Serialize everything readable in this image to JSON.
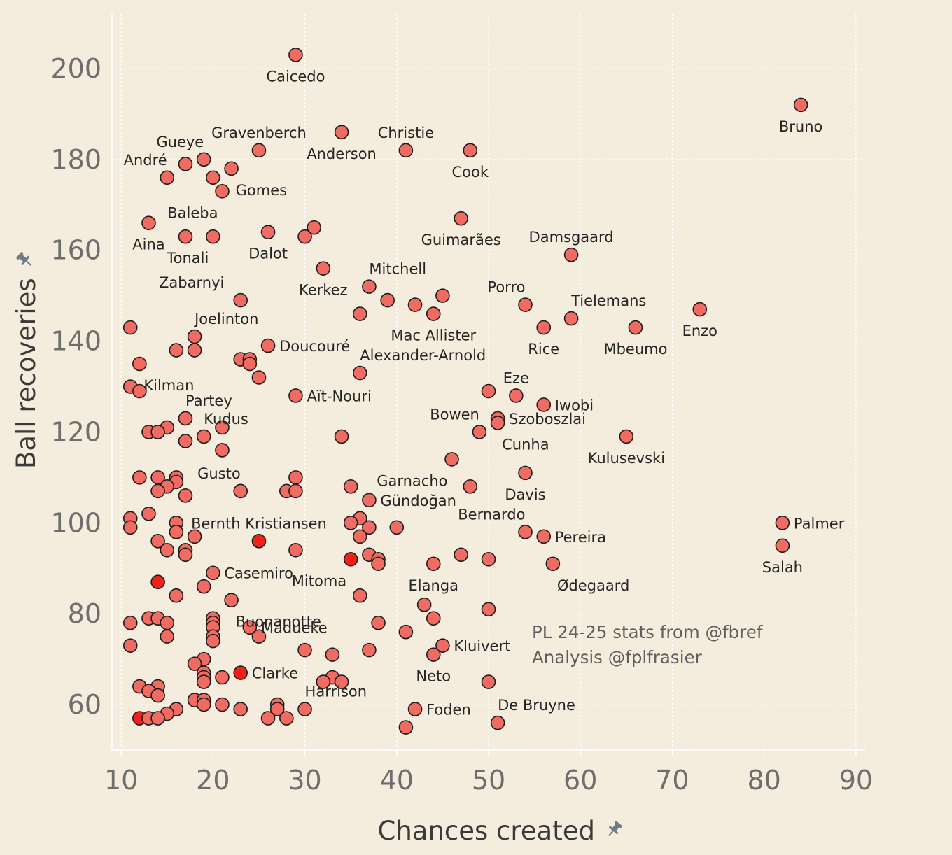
{
  "chart_data": {
    "type": "scatter",
    "xlabel": "Chances created",
    "ylabel": "Ball recoveries",
    "xlim": [
      9,
      91
    ],
    "ylim": [
      50,
      212
    ],
    "xticks": [
      10,
      20,
      30,
      40,
      50,
      60,
      70,
      80,
      90
    ],
    "yticks": [
      60,
      80,
      100,
      120,
      140,
      160,
      180,
      200
    ],
    "grid": true,
    "annotation": [
      "PL 24-25 stats from @fbref",
      "Analysis @fplfrasier"
    ],
    "point_color": "#f06b62",
    "overlap_color": "#f51f1a",
    "points": [
      {
        "x": 29,
        "y": 203,
        "label": "Caicedo",
        "pos": "below"
      },
      {
        "x": 84,
        "y": 192,
        "label": "Bruno",
        "pos": "below"
      },
      {
        "x": 34,
        "y": 186,
        "label": "Anderson",
        "pos": "below"
      },
      {
        "x": 25,
        "y": 182,
        "label": "Gravenberch",
        "pos": "above"
      },
      {
        "x": 41,
        "y": 182,
        "label": "Christie",
        "pos": "above"
      },
      {
        "x": 48,
        "y": 182,
        "label": "Cook",
        "pos": "below"
      },
      {
        "x": 19,
        "y": 180,
        "label": "Gueye",
        "pos": "aboveleft"
      },
      {
        "x": 17,
        "y": 179
      },
      {
        "x": 15,
        "y": 176,
        "label": "André",
        "pos": "aboveleft"
      },
      {
        "x": 22,
        "y": 178,
        "label": "Gomes",
        "pos": "belowright"
      },
      {
        "x": 20,
        "y": 176
      },
      {
        "x": 21,
        "y": 173,
        "label": "Baleba",
        "pos": "belowleft"
      },
      {
        "x": 47,
        "y": 167,
        "label": "Guimarães",
        "pos": "below"
      },
      {
        "x": 13,
        "y": 166,
        "label": "Aina",
        "pos": "below"
      },
      {
        "x": 31,
        "y": 165
      },
      {
        "x": 26,
        "y": 164,
        "label": "Dalot",
        "pos": "below"
      },
      {
        "x": 30,
        "y": 163
      },
      {
        "x": 17,
        "y": 163
      },
      {
        "x": 20,
        "y": 163,
        "label": "Tonali",
        "pos": "belowleft"
      },
      {
        "x": 59,
        "y": 159,
        "label": "Damsgaard",
        "pos": "above"
      },
      {
        "x": 32,
        "y": 156,
        "label": "Kerkez",
        "pos": "below"
      },
      {
        "x": 37,
        "y": 152,
        "label": "Mitchell",
        "pos": "aboveright"
      },
      {
        "x": 45,
        "y": 150
      },
      {
        "x": 39,
        "y": 149
      },
      {
        "x": 23,
        "y": 149,
        "label": "Zabarnyi",
        "pos": "aboveleftfar"
      },
      {
        "x": 54,
        "y": 148,
        "label": "Porro",
        "pos": "aboveleft"
      },
      {
        "x": 42,
        "y": 148
      },
      {
        "x": 73,
        "y": 147,
        "label": "Enzo",
        "pos": "below"
      },
      {
        "x": 44,
        "y": 146,
        "label": "Mac Allister",
        "pos": "below"
      },
      {
        "x": 36,
        "y": 146
      },
      {
        "x": 59,
        "y": 145,
        "label": "Tielemans",
        "pos": "aboveright"
      },
      {
        "x": 56,
        "y": 143,
        "label": "Rice",
        "pos": "below"
      },
      {
        "x": 66,
        "y": 143,
        "label": "Mbeumo",
        "pos": "below"
      },
      {
        "x": 11,
        "y": 143
      },
      {
        "x": 18,
        "y": 141,
        "label": "Joelinton",
        "pos": "aboveright"
      },
      {
        "x": 26,
        "y": 139,
        "label": "Doucouré",
        "pos": "right"
      },
      {
        "x": 16,
        "y": 138
      },
      {
        "x": 18,
        "y": 138
      },
      {
        "x": 23,
        "y": 136
      },
      {
        "x": 24,
        "y": 136
      },
      {
        "x": 24,
        "y": 135
      },
      {
        "x": 12,
        "y": 135,
        "label": "Kilman",
        "pos": "belowright"
      },
      {
        "x": 36,
        "y": 133,
        "label": "Alexander-Arnold",
        "pos": "aboveright"
      },
      {
        "x": 25,
        "y": 132
      },
      {
        "x": 11,
        "y": 130
      },
      {
        "x": 50,
        "y": 129
      },
      {
        "x": 12,
        "y": 129
      },
      {
        "x": 53,
        "y": 128,
        "label": "Eze",
        "pos": "above"
      },
      {
        "x": 29,
        "y": 128,
        "label": "Aït-Nouri",
        "pos": "right"
      },
      {
        "x": 56,
        "y": 126,
        "label": "Iwobi",
        "pos": "right"
      },
      {
        "x": 17,
        "y": 123,
        "label": "Partey",
        "pos": "aboveright"
      },
      {
        "x": 51,
        "y": 123,
        "label": "Szoboszlai",
        "pos": "right"
      },
      {
        "x": 51,
        "y": 122,
        "label": "Cunha",
        "pos": "belowright"
      },
      {
        "x": 15,
        "y": 121
      },
      {
        "x": 21,
        "y": 121
      },
      {
        "x": 49,
        "y": 120,
        "label": "Bowen",
        "pos": "aboveleft"
      },
      {
        "x": 13,
        "y": 120
      },
      {
        "x": 14,
        "y": 120
      },
      {
        "x": 19,
        "y": 119,
        "label": "Kudus",
        "pos": "aboveright"
      },
      {
        "x": 34,
        "y": 119
      },
      {
        "x": 65,
        "y": 119,
        "label": "Kulusevski",
        "pos": "below"
      },
      {
        "x": 17,
        "y": 118
      },
      {
        "x": 21,
        "y": 116
      },
      {
        "x": 46,
        "y": 114,
        "label": "Garnacho",
        "pos": "belowleft"
      },
      {
        "x": 54,
        "y": 111,
        "label": "Davis",
        "pos": "below"
      },
      {
        "x": 12,
        "y": 110
      },
      {
        "x": 14,
        "y": 110
      },
      {
        "x": 16,
        "y": 110
      },
      {
        "x": 29,
        "y": 110
      },
      {
        "x": 16,
        "y": 109
      },
      {
        "x": 15,
        "y": 108
      },
      {
        "x": 35,
        "y": 108
      },
      {
        "x": 48,
        "y": 108
      },
      {
        "x": 14,
        "y": 107
      },
      {
        "x": 23,
        "y": 107,
        "label": "Gusto",
        "pos": "aboveleft"
      },
      {
        "x": 28,
        "y": 107
      },
      {
        "x": 29,
        "y": 107
      },
      {
        "x": 17,
        "y": 106
      },
      {
        "x": 37,
        "y": 105,
        "label": "Gündoğan",
        "pos": "right"
      },
      {
        "x": 13,
        "y": 102
      },
      {
        "x": 11,
        "y": 101
      },
      {
        "x": 36,
        "y": 101
      },
      {
        "x": 82,
        "y": 100,
        "label": "Palmer",
        "pos": "right"
      },
      {
        "x": 16,
        "y": 100
      },
      {
        "x": 35,
        "y": 100
      },
      {
        "x": 11,
        "y": 99
      },
      {
        "x": 37,
        "y": 99
      },
      {
        "x": 40,
        "y": 99
      },
      {
        "x": 16,
        "y": 98
      },
      {
        "x": 54,
        "y": 98,
        "label": "Bernardo",
        "pos": "aboveleft"
      },
      {
        "x": 18,
        "y": 97
      },
      {
        "x": 36,
        "y": 97
      },
      {
        "x": 56,
        "y": 97,
        "label": "Pereira",
        "pos": "right"
      },
      {
        "x": 14,
        "y": 96
      },
      {
        "x": 25,
        "y": 96,
        "hot": true,
        "label": "Bernth Kristiansen",
        "pos": "above"
      },
      {
        "x": 82,
        "y": 95,
        "label": "Salah",
        "pos": "below"
      },
      {
        "x": 15,
        "y": 94
      },
      {
        "x": 17,
        "y": 94
      },
      {
        "x": 29,
        "y": 94
      },
      {
        "x": 17,
        "y": 93
      },
      {
        "x": 37,
        "y": 93
      },
      {
        "x": 47,
        "y": 93
      },
      {
        "x": 35,
        "y": 92,
        "hot": true,
        "label": "Mitoma",
        "pos": "belowleft"
      },
      {
        "x": 38,
        "y": 92
      },
      {
        "x": 50,
        "y": 92
      },
      {
        "x": 38,
        "y": 91
      },
      {
        "x": 44,
        "y": 91,
        "label": "Elanga",
        "pos": "below"
      },
      {
        "x": 57,
        "y": 91,
        "label": "Ødegaard",
        "pos": "belowright"
      },
      {
        "x": 20,
        "y": 89,
        "label": "Casemiro",
        "pos": "right"
      },
      {
        "x": 14,
        "y": 87,
        "hot": true
      },
      {
        "x": 19,
        "y": 86
      },
      {
        "x": 16,
        "y": 84
      },
      {
        "x": 36,
        "y": 84
      },
      {
        "x": 22,
        "y": 83,
        "label": "Buonanotte",
        "pos": "belowright"
      },
      {
        "x": 43,
        "y": 82
      },
      {
        "x": 50,
        "y": 81
      },
      {
        "x": 13,
        "y": 79
      },
      {
        "x": 14,
        "y": 79
      },
      {
        "x": 20,
        "y": 79
      },
      {
        "x": 44,
        "y": 79
      },
      {
        "x": 11,
        "y": 78
      },
      {
        "x": 15,
        "y": 78
      },
      {
        "x": 20,
        "y": 78
      },
      {
        "x": 38,
        "y": 78
      },
      {
        "x": 20,
        "y": 77
      },
      {
        "x": 24,
        "y": 77,
        "label": "Madueke",
        "pos": "right"
      },
      {
        "x": 41,
        "y": 76
      },
      {
        "x": 15,
        "y": 75
      },
      {
        "x": 20,
        "y": 75
      },
      {
        "x": 25,
        "y": 75
      },
      {
        "x": 20,
        "y": 74
      },
      {
        "x": 11,
        "y": 73
      },
      {
        "x": 45,
        "y": 73,
        "label": "Kluivert",
        "pos": "right"
      },
      {
        "x": 30,
        "y": 72
      },
      {
        "x": 37,
        "y": 72
      },
      {
        "x": 33,
        "y": 71
      },
      {
        "x": 44,
        "y": 71,
        "label": "Neto",
        "pos": "below"
      },
      {
        "x": 19,
        "y": 70
      },
      {
        "x": 18,
        "y": 69
      },
      {
        "x": 23,
        "y": 67,
        "hot": true,
        "label": "Clarke",
        "pos": "right"
      },
      {
        "x": 19,
        "y": 67
      },
      {
        "x": 19,
        "y": 66
      },
      {
        "x": 21,
        "y": 66
      },
      {
        "x": 33,
        "y": 66
      },
      {
        "x": 19,
        "y": 65
      },
      {
        "x": 32,
        "y": 65
      },
      {
        "x": 34,
        "y": 65
      },
      {
        "x": 50,
        "y": 65
      },
      {
        "x": 12,
        "y": 64
      },
      {
        "x": 14,
        "y": 64
      },
      {
        "x": 13,
        "y": 63
      },
      {
        "x": 14,
        "y": 62
      },
      {
        "x": 18,
        "y": 61
      },
      {
        "x": 19,
        "y": 61
      },
      {
        "x": 19,
        "y": 60
      },
      {
        "x": 21,
        "y": 60
      },
      {
        "x": 27,
        "y": 60
      },
      {
        "x": 16,
        "y": 59
      },
      {
        "x": 23,
        "y": 59
      },
      {
        "x": 27,
        "y": 59
      },
      {
        "x": 30,
        "y": 59,
        "label": "Harrison",
        "pos": "aboveright"
      },
      {
        "x": 42,
        "y": 59,
        "label": "Foden",
        "pos": "right"
      },
      {
        "x": 15,
        "y": 58
      },
      {
        "x": 12,
        "y": 57,
        "hot": true
      },
      {
        "x": 13,
        "y": 57
      },
      {
        "x": 14,
        "y": 57
      },
      {
        "x": 26,
        "y": 57
      },
      {
        "x": 28,
        "y": 57
      },
      {
        "x": 51,
        "y": 56,
        "label": "De Bruyne",
        "pos": "aboveright"
      },
      {
        "x": 41,
        "y": 55
      }
    ]
  }
}
